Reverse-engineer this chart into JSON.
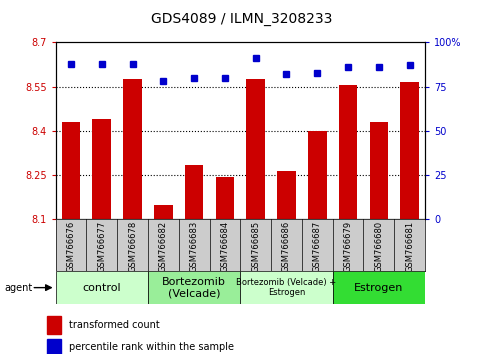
{
  "title": "GDS4089 / ILMN_3208233",
  "samples": [
    "GSM766676",
    "GSM766677",
    "GSM766678",
    "GSM766682",
    "GSM766683",
    "GSM766684",
    "GSM766685",
    "GSM766686",
    "GSM766687",
    "GSM766679",
    "GSM766680",
    "GSM766681"
  ],
  "bar_values": [
    8.43,
    8.44,
    8.575,
    8.15,
    8.285,
    8.245,
    8.575,
    8.265,
    8.4,
    8.555,
    8.43,
    8.565
  ],
  "percentile_values": [
    88,
    88,
    88,
    78,
    80,
    80,
    91,
    82,
    83,
    86,
    86,
    87
  ],
  "bar_color": "#cc0000",
  "dot_color": "#0000cc",
  "ylim_left": [
    8.1,
    8.7
  ],
  "ylim_right": [
    0,
    100
  ],
  "yticks_left": [
    8.1,
    8.25,
    8.4,
    8.55,
    8.7
  ],
  "yticks_right": [
    0,
    25,
    50,
    75,
    100
  ],
  "ytick_labels_left": [
    "8.1",
    "8.25",
    "8.4",
    "8.55",
    "8.7"
  ],
  "ytick_labels_right": [
    "0",
    "25",
    "50",
    "75",
    "100%"
  ],
  "groups": [
    {
      "label": "control",
      "start": 0,
      "end": 3,
      "color": "#ccffcc"
    },
    {
      "label": "Bortezomib\n(Velcade)",
      "start": 3,
      "end": 6,
      "color": "#99ee99"
    },
    {
      "label": "Bortezomib (Velcade) +\nEstrogen",
      "start": 6,
      "end": 9,
      "color": "#ccffcc"
    },
    {
      "label": "Estrogen",
      "start": 9,
      "end": 12,
      "color": "#33dd33"
    }
  ],
  "agent_label": "agent",
  "legend_bar_label": "transformed count",
  "legend_dot_label": "percentile rank within the sample",
  "background_color": "#ffffff",
  "plot_bg_color": "#ffffff",
  "grid_color": "#000000",
  "tick_color_left": "#cc0000",
  "tick_color_right": "#0000cc",
  "title_fontsize": 10,
  "bar_fontsize": 6,
  "sample_fontsize": 6,
  "group_fontsize": 8
}
